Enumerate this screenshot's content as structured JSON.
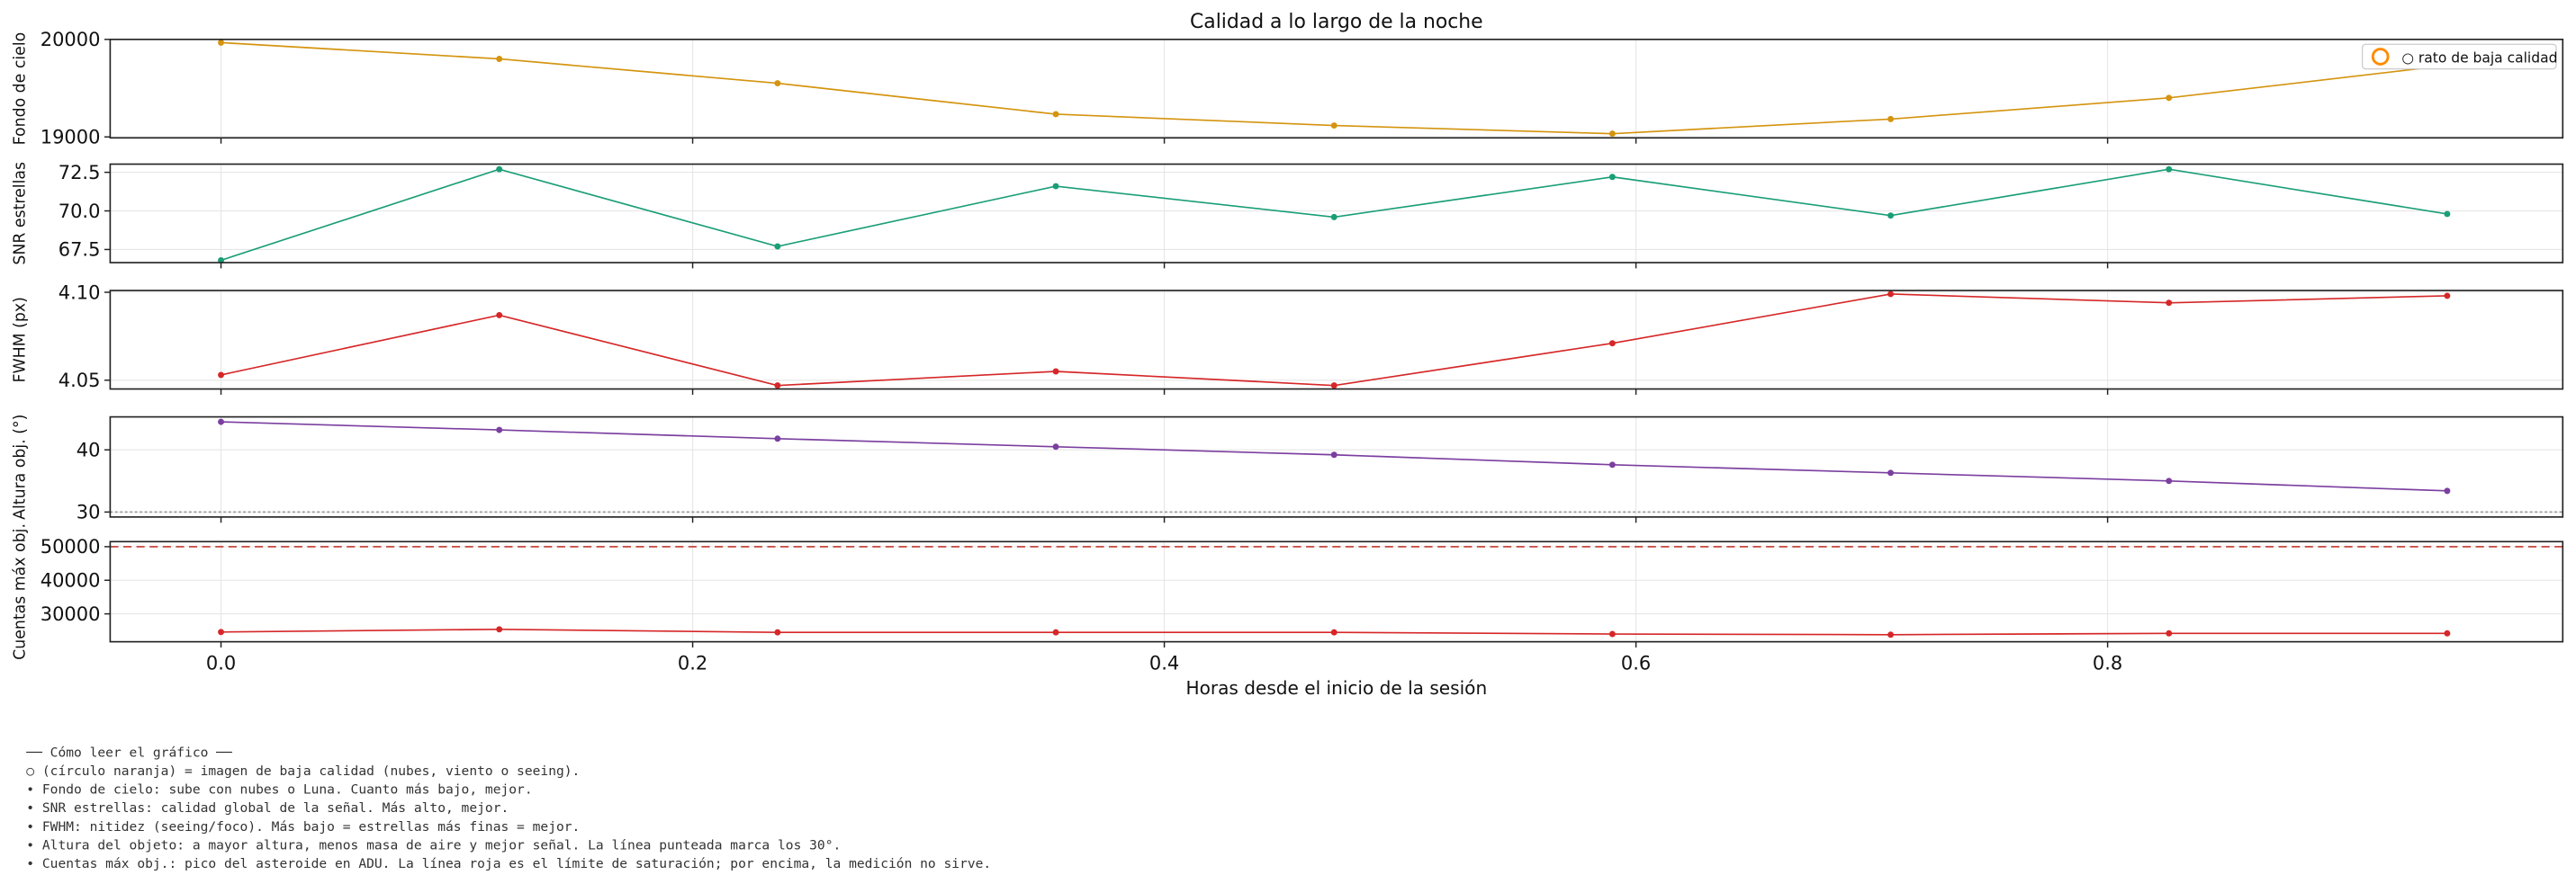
{
  "chart_data": [
    {
      "type": "line",
      "title": "Calidad a lo largo de la noche",
      "ylabel": "Fondo de cielo",
      "x": [
        0,
        0.118,
        0.236,
        0.354,
        0.472,
        0.59,
        0.708,
        0.826,
        0.944
      ],
      "values": [
        19967,
        19800,
        19550,
        19233,
        19117,
        19033,
        19183,
        19400,
        19733
      ],
      "color": "#d4940f",
      "xlim": [
        -0.047,
        0.993
      ],
      "ylim": [
        18990,
        20000
      ],
      "yticks": [
        19000,
        20000
      ],
      "grid": true,
      "legend": {
        "label": "○ rato de baja calidad",
        "loc": "upper right",
        "color": "#ff8c00"
      }
    },
    {
      "type": "line",
      "ylabel": "SNR estrellas",
      "x": [
        0,
        0.118,
        0.236,
        0.354,
        0.472,
        0.59,
        0.708,
        0.826,
        0.944
      ],
      "values": [
        66.8,
        72.7,
        67.7,
        71.6,
        69.6,
        72.2,
        69.7,
        72.7,
        69.8
      ],
      "color": "#1a9e77",
      "xlim": [
        -0.047,
        0.993
      ],
      "ylim": [
        66.65,
        73.03
      ],
      "yticks": [
        {
          "value": 67.5,
          "label": "67.5"
        },
        {
          "value": 70,
          "label": "70.0"
        },
        {
          "value": 72.5,
          "label": "72.5"
        }
      ],
      "grid": true
    },
    {
      "type": "line",
      "ylabel": "FWHM (px)",
      "x": [
        0,
        0.118,
        0.236,
        0.354,
        0.472,
        0.59,
        0.708,
        0.826,
        0.944
      ],
      "values": [
        4.053,
        4.087,
        4.047,
        4.055,
        4.047,
        4.071,
        4.099,
        4.094,
        4.098
      ],
      "color": "#d62728",
      "xlim": [
        -0.047,
        0.993
      ],
      "ylim": [
        4.045,
        4.101
      ],
      "yticks": [
        4.05,
        {
          "value": 4.1,
          "label": "4.10"
        }
      ],
      "grid": true
    },
    {
      "type": "line",
      "ylabel": "Altura obj. (°)",
      "x": [
        0,
        0.118,
        0.236,
        0.354,
        0.472,
        0.59,
        0.708,
        0.826,
        0.944
      ],
      "values": [
        44.5,
        43.2,
        41.8,
        40.5,
        39.2,
        37.6,
        36.3,
        35.0,
        33.4
      ],
      "color": "#7b3fa0",
      "xlim": [
        -0.047,
        0.993
      ],
      "ylim": [
        29.2,
        45.3
      ],
      "yticks": [
        30,
        40
      ],
      "grid": true,
      "hline": {
        "value": 30,
        "color": "#999999",
        "dash": "1.5 1.5"
      }
    },
    {
      "type": "line",
      "ylabel": "Cuentas máx obj.",
      "xlabel": "Horas desde el inicio de la sesión",
      "x": [
        0,
        0.118,
        0.236,
        0.354,
        0.472,
        0.59,
        0.708,
        0.826,
        0.944
      ],
      "values": [
        24600,
        25400,
        24500,
        24500,
        24500,
        24000,
        23800,
        24200,
        24200
      ],
      "color": "#d62728",
      "xlim": [
        -0.047,
        0.993
      ],
      "ylim": [
        21700,
        51500
      ],
      "yticks": [
        30000,
        40000,
        50000
      ],
      "grid": true,
      "hline": {
        "value": 50000,
        "color": "#c0392b",
        "dash": "5 3"
      },
      "xticks": [
        {
          "value": 0,
          "label": "0.0"
        },
        {
          "value": 0.2,
          "label": "0.2"
        },
        {
          "value": 0.4,
          "label": "0.4"
        },
        {
          "value": 0.6,
          "label": "0.6"
        },
        {
          "value": 0.8,
          "label": "0.8"
        }
      ]
    }
  ],
  "notes": {
    "lines": [
      "── Cómo leer el gráfico ──",
      "○ (círculo naranja) = imagen de baja calidad (nubes, viento o seeing).",
      "• Fondo de cielo: sube con nubes o Luna. Cuanto más bajo, mejor.",
      "• SNR estrellas: calidad global de la señal. Más alto, mejor.",
      "• FWHM: nitidez (seeing/foco). Más bajo = estrellas más finas = mejor.",
      "• Altura del objeto: a mayor altura, menos masa de aire y mejor señal. La línea punteada marca los 30°.",
      "• Cuentas máx obj.: pico del asteroide en ADU. La línea roja es el límite de saturación; por encima, la medición no sirve."
    ]
  }
}
